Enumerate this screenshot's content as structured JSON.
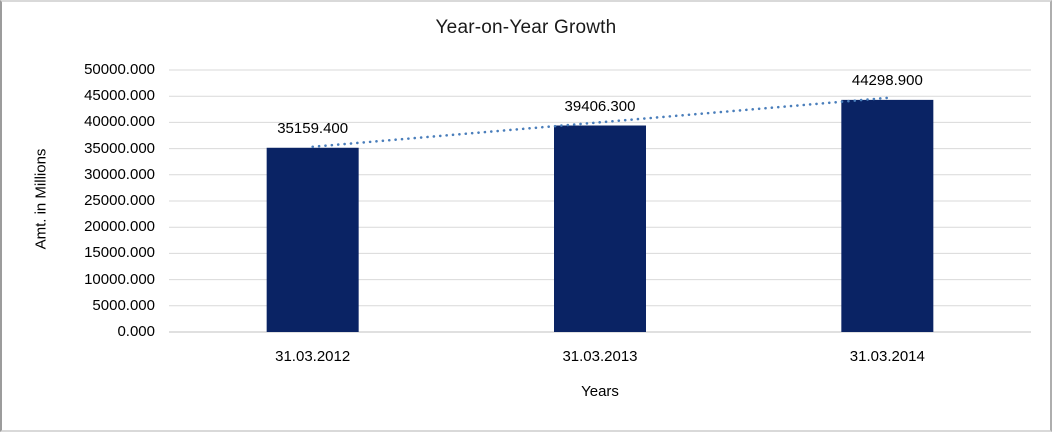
{
  "chart_data": {
    "type": "bar",
    "title": "Year-on-Year Growth",
    "xlabel": "Years",
    "ylabel": "Amt. in Millions",
    "categories": [
      "31.03.2012",
      "31.03.2013",
      "31.03.2014"
    ],
    "values": [
      35159.4,
      39406.3,
      44298.9
    ],
    "data_labels": [
      "35159.400",
      "39406.300",
      "44298.900"
    ],
    "ylim": [
      0,
      50000
    ],
    "ytick_step": 5000,
    "ytick_labels": [
      "0.000",
      "5000.000",
      "10000.000",
      "15000.000",
      "20000.000",
      "25000.000",
      "30000.000",
      "35000.000",
      "40000.000",
      "45000.000",
      "50000.000"
    ],
    "grid": true,
    "legend": "none",
    "trendline": {
      "type": "linear",
      "style": "dotted"
    },
    "colors": {
      "bar": "#0a2364",
      "trendline": "#4a7ebb",
      "gridline": "#d9d9d9",
      "axis_line": "#c0c0c0",
      "text": "#000000"
    }
  }
}
